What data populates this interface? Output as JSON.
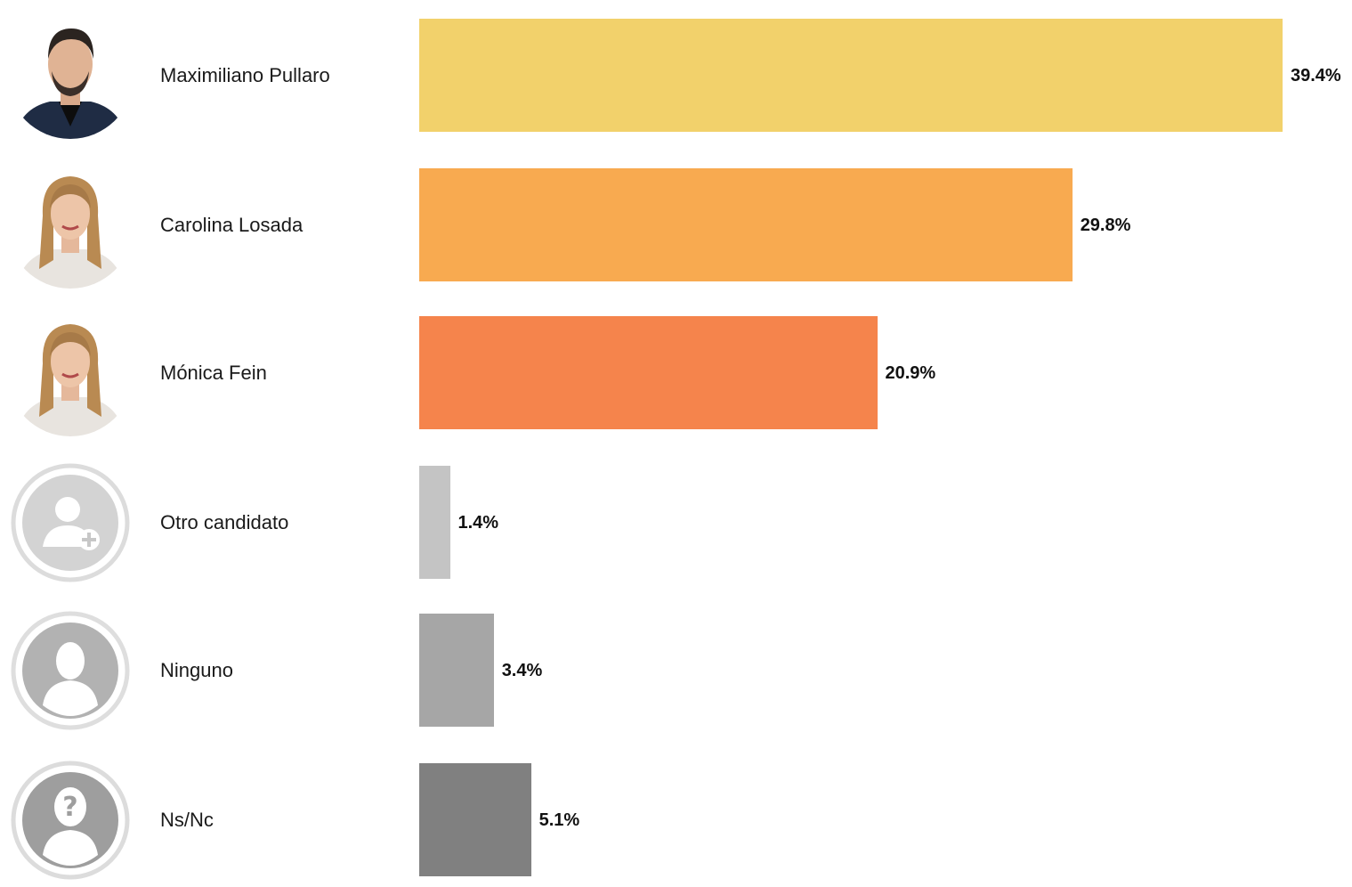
{
  "chart_data": {
    "type": "bar",
    "orientation": "horizontal",
    "categories": [
      "Maximiliano Pullaro",
      "Carolina Losada",
      "Mónica Fein",
      "Otro candidato",
      "Ninguno",
      "Ns/Nc"
    ],
    "values": [
      39.4,
      29.8,
      20.9,
      1.4,
      3.4,
      5.1
    ],
    "value_labels": [
      "39.4%",
      "29.8%",
      "20.9%",
      "1.4%",
      "3.4%",
      "5.1%"
    ],
    "colors": [
      "#F2D16B",
      "#F8AA50",
      "#F5844C",
      "#C4C4C4",
      "#A6A6A6",
      "#808080"
    ],
    "avatars": [
      "photo-man-icon",
      "photo-woman-icon",
      "photo-woman-icon",
      "add-person-icon",
      "person-silhouette-icon",
      "question-person-icon"
    ],
    "grid": false,
    "legend": "none"
  }
}
